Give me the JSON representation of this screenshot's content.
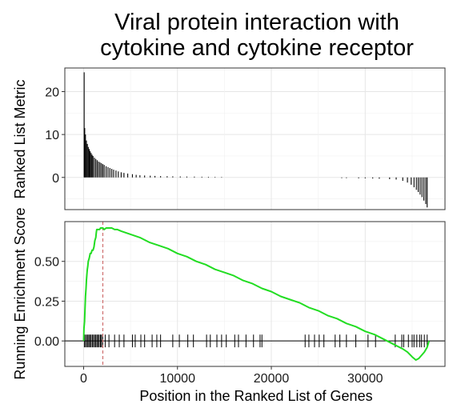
{
  "title_lines": [
    "Viral protein interaction with",
    "cytokine and cytokine receptor"
  ],
  "chart_data": [
    {
      "type": "bar",
      "panel": "ranked-list-metric",
      "ylabel": "Ranked List Metric",
      "xlim": [
        -2000,
        38500
      ],
      "ylim": [
        -7.5,
        25.5
      ],
      "yticks": [
        0,
        10,
        20
      ],
      "ytick_labels": [
        "0",
        "10",
        "20"
      ],
      "grid": true,
      "bars": [
        [
          60,
          24.5
        ],
        [
          120,
          11.5
        ],
        [
          200,
          10.0
        ],
        [
          300,
          8.6
        ],
        [
          400,
          7.8
        ],
        [
          500,
          7.1
        ],
        [
          600,
          6.6
        ],
        [
          700,
          6.1
        ],
        [
          800,
          5.7
        ],
        [
          900,
          5.3
        ],
        [
          1000,
          5.0
        ],
        [
          1150,
          4.6
        ],
        [
          1300,
          4.3
        ],
        [
          1450,
          4.0
        ],
        [
          1600,
          3.7
        ],
        [
          1750,
          3.5
        ],
        [
          1900,
          3.3
        ],
        [
          2050,
          3.1
        ],
        [
          2200,
          2.9
        ],
        [
          2400,
          2.6
        ],
        [
          2600,
          2.4
        ],
        [
          2800,
          2.2
        ],
        [
          3000,
          2.0
        ],
        [
          3200,
          1.8
        ],
        [
          3450,
          1.6
        ],
        [
          3700,
          1.4
        ],
        [
          4000,
          1.2
        ],
        [
          4300,
          1.05
        ],
        [
          4700,
          0.9
        ],
        [
          5200,
          0.75
        ],
        [
          5600,
          0.6
        ],
        [
          6000,
          0.5
        ],
        [
          6500,
          0.45
        ],
        [
          7100,
          0.4
        ],
        [
          7600,
          0.35
        ],
        [
          8200,
          0.3
        ],
        [
          8900,
          0.28
        ],
        [
          9500,
          0.25
        ],
        [
          10300,
          0.22
        ],
        [
          11000,
          0.2
        ],
        [
          11800,
          0.18
        ],
        [
          12600,
          0.16
        ],
        [
          13300,
          0.14
        ],
        [
          14000,
          0.12
        ],
        [
          14700,
          0.1
        ],
        [
          27500,
          -0.15
        ],
        [
          28000,
          -0.15
        ],
        [
          29300,
          -0.2
        ],
        [
          30000,
          -0.2
        ],
        [
          30800,
          -0.25
        ],
        [
          31500,
          -0.3
        ],
        [
          32600,
          -0.4
        ],
        [
          33300,
          -0.5
        ],
        [
          34000,
          -0.8
        ],
        [
          34500,
          -1.2
        ],
        [
          34900,
          -1.7
        ],
        [
          35200,
          -2.3
        ],
        [
          35450,
          -2.9
        ],
        [
          35650,
          -3.4
        ],
        [
          35850,
          -4.0
        ],
        [
          36050,
          -4.6
        ],
        [
          36250,
          -5.4
        ],
        [
          36450,
          -6.2
        ],
        [
          36600,
          -7.0
        ]
      ]
    },
    {
      "type": "line",
      "panel": "running-enrichment-score",
      "ylabel": "Running Enrichment Score",
      "xlabel": "Position in the Ranked List of Genes",
      "xlim": [
        -2000,
        38500
      ],
      "ylim": [
        -0.16,
        0.75
      ],
      "xticks": [
        0,
        10000,
        20000,
        30000
      ],
      "xtick_labels": [
        "0",
        "10000",
        "20000",
        "30000"
      ],
      "yticks": [
        0,
        0.25,
        0.5
      ],
      "ytick_labels": [
        "0.00",
        "0.25",
        "0.50"
      ],
      "grid": true,
      "line_color": "#22dd22",
      "peak_line_color": "#cc6666",
      "peak_position": 2050,
      "points": [
        [
          0,
          0.0
        ],
        [
          40,
          0.08
        ],
        [
          100,
          0.12
        ],
        [
          150,
          0.2
        ],
        [
          200,
          0.28
        ],
        [
          260,
          0.33
        ],
        [
          300,
          0.38
        ],
        [
          350,
          0.42
        ],
        [
          400,
          0.45
        ],
        [
          450,
          0.47
        ],
        [
          500,
          0.5
        ],
        [
          600,
          0.52
        ],
        [
          700,
          0.55
        ],
        [
          800,
          0.55
        ],
        [
          900,
          0.57
        ],
        [
          1000,
          0.57
        ],
        [
          1100,
          0.59
        ],
        [
          1200,
          0.63
        ],
        [
          1300,
          0.65
        ],
        [
          1350,
          0.68
        ],
        [
          1400,
          0.7
        ],
        [
          1500,
          0.7
        ],
        [
          1600,
          0.7
        ],
        [
          1700,
          0.7
        ],
        [
          1800,
          0.71
        ],
        [
          1900,
          0.71
        ],
        [
          2050,
          0.71
        ],
        [
          2200,
          0.7
        ],
        [
          2400,
          0.71
        ],
        [
          2600,
          0.71
        ],
        [
          2800,
          0.71
        ],
        [
          3000,
          0.71
        ],
        [
          3300,
          0.7
        ],
        [
          3600,
          0.7
        ],
        [
          4000,
          0.69
        ],
        [
          5000,
          0.67
        ],
        [
          6000,
          0.65
        ],
        [
          7000,
          0.62
        ],
        [
          8000,
          0.6
        ],
        [
          9000,
          0.58
        ],
        [
          10000,
          0.55
        ],
        [
          11000,
          0.53
        ],
        [
          12000,
          0.5
        ],
        [
          13000,
          0.48
        ],
        [
          14000,
          0.45
        ],
        [
          15000,
          0.43
        ],
        [
          16000,
          0.41
        ],
        [
          17000,
          0.38
        ],
        [
          18000,
          0.36
        ],
        [
          19000,
          0.33
        ],
        [
          20000,
          0.31
        ],
        [
          21000,
          0.28
        ],
        [
          22000,
          0.26
        ],
        [
          23000,
          0.24
        ],
        [
          24000,
          0.21
        ],
        [
          25000,
          0.19
        ],
        [
          26000,
          0.16
        ],
        [
          27000,
          0.14
        ],
        [
          28000,
          0.11
        ],
        [
          29000,
          0.09
        ],
        [
          30000,
          0.06
        ],
        [
          31000,
          0.04
        ],
        [
          32000,
          0.01
        ],
        [
          33000,
          -0.02
        ],
        [
          34000,
          -0.05
        ],
        [
          34500,
          -0.07
        ],
        [
          35000,
          -0.1
        ],
        [
          35400,
          -0.12
        ],
        [
          35700,
          -0.11
        ],
        [
          36000,
          -0.09
        ],
        [
          36300,
          -0.07
        ],
        [
          36600,
          -0.04
        ],
        [
          36800,
          0.0
        ]
      ],
      "hit_positions": [
        80,
        200,
        320,
        450,
        560,
        680,
        800,
        930,
        1050,
        1180,
        1300,
        1420,
        1540,
        1660,
        1790,
        1900,
        2030,
        2300,
        2700,
        3300,
        3800,
        4300,
        5200,
        5500,
        6100,
        6500,
        7300,
        7800,
        8200,
        9500,
        10200,
        11100,
        11700,
        13100,
        13500,
        14200,
        14700,
        15200,
        16100,
        16500,
        17300,
        18100,
        18800,
        19000,
        23600,
        24000,
        24600,
        25100,
        25600,
        26800,
        27300,
        28000,
        29000,
        30300,
        31100,
        33200,
        33900,
        34100,
        34600,
        35000,
        35200,
        35500,
        35800,
        36000,
        36300,
        36600
      ]
    }
  ]
}
